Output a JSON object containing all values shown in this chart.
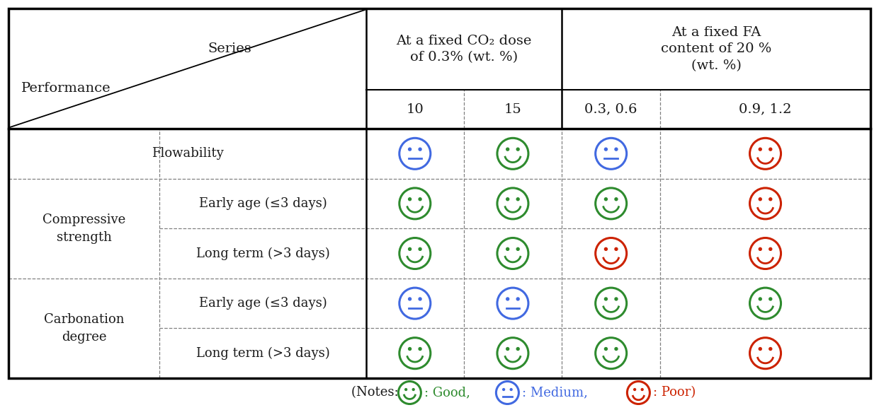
{
  "rows": [
    {
      "main": "Flowability",
      "sub": "",
      "data": [
        "medium_blue",
        "good_green",
        "medium_blue",
        "poor_red"
      ],
      "main_span": 1
    },
    {
      "main": "Compressive\nstrength",
      "sub": "Early age (≤3 days)",
      "data": [
        "good_green",
        "good_green",
        "good_green",
        "poor_red"
      ],
      "main_span": 2
    },
    {
      "main": "",
      "sub": "Long term (>3 days)",
      "data": [
        "good_green",
        "good_green",
        "poor_red",
        "poor_red"
      ],
      "main_span": 0
    },
    {
      "main": "Carbonation\ndegree",
      "sub": "Early age (≤3 days)",
      "data": [
        "medium_blue",
        "medium_blue",
        "good_green",
        "good_green"
      ],
      "main_span": 2
    },
    {
      "main": "",
      "sub": "Long term (>3 days)",
      "data": [
        "good_green",
        "good_green",
        "good_green",
        "poor_red"
      ],
      "main_span": 0
    }
  ],
  "subcol_labels": [
    "10",
    "15",
    "0.3, 0.6",
    "0.9, 1.2"
  ],
  "header_co2": "At a fixed CO₂ dose\nof 0.3% (wt. %)",
  "header_fa": "At a fixed FA\ncontent of 20 %\n(wt. %)",
  "colors": {
    "good": "#2e8b2e",
    "medium": "#4169e1",
    "poor": "#cc2200",
    "text": "#1a1a1a",
    "border": "#000000",
    "inner_border": "#808080",
    "bg": "#ffffff"
  },
  "figsize": [
    12.41,
    5.8
  ],
  "dpi": 100
}
